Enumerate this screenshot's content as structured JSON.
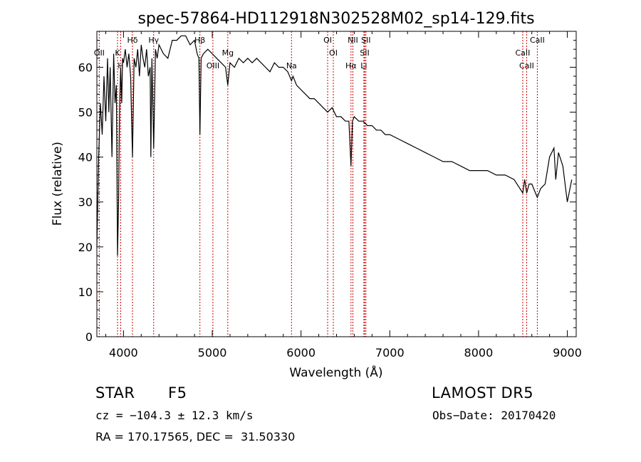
{
  "chart_data": {
    "type": "line",
    "title": "spec-57864-HD112918N302528M02_sp14-129.fits",
    "xlabel": "Wavelength (Å)",
    "ylabel": "Flux (relative)",
    "xlim": [
      3700,
      9100
    ],
    "ylim": [
      0,
      68
    ],
    "xticks": [
      4000,
      5000,
      6000,
      7000,
      8000,
      9000
    ],
    "yticks": [
      0,
      10,
      20,
      30,
      40,
      50,
      60
    ],
    "grid": false,
    "line_color": "#000000",
    "marker_color": "#cc0000",
    "series": [
      {
        "x": [
          3700,
          3720,
          3740,
          3760,
          3780,
          3800,
          3820,
          3835,
          3850,
          3870,
          3889,
          3905,
          3920,
          3933,
          3945,
          3955,
          3968,
          3980,
          3990,
          4000,
          4020,
          4040,
          4060,
          4080,
          4101,
          4120,
          4140,
          4160,
          4180,
          4200,
          4220,
          4240,
          4260,
          4280,
          4300,
          4308,
          4320,
          4340,
          4360,
          4380,
          4400,
          4450,
          4500,
          4550,
          4600,
          4650,
          4700,
          4750,
          4800,
          4830,
          4850,
          4861,
          4875,
          4900,
          4950,
          5000,
          5050,
          5100,
          5150,
          5175,
          5200,
          5250,
          5300,
          5350,
          5400,
          5450,
          5500,
          5550,
          5600,
          5650,
          5700,
          5750,
          5800,
          5850,
          5893,
          5910,
          5950,
          6000,
          6050,
          6100,
          6150,
          6200,
          6250,
          6300,
          6350,
          6400,
          6450,
          6500,
          6540,
          6563,
          6580,
          6600,
          6650,
          6700,
          6750,
          6800,
          6850,
          6900,
          6950,
          7000,
          7100,
          7200,
          7300,
          7400,
          7500,
          7600,
          7700,
          7800,
          7900,
          8000,
          8100,
          8200,
          8300,
          8400,
          8498,
          8520,
          8542,
          8570,
          8600,
          8662,
          8700,
          8750,
          8800,
          8850,
          8870,
          8900,
          8950,
          9000,
          9050
        ],
        "y": [
          20,
          40,
          52,
          45,
          58,
          48,
          62,
          50,
          60,
          40,
          63,
          52,
          56,
          18,
          30,
          50,
          60,
          52,
          62,
          61,
          64,
          60,
          63,
          58,
          40,
          62,
          60,
          64,
          58,
          65,
          62,
          60,
          64,
          58,
          60,
          40,
          62,
          42,
          64,
          62,
          65,
          63,
          62,
          66,
          66,
          67,
          67,
          65,
          66,
          63,
          62,
          45,
          62,
          63,
          64,
          63,
          62,
          61,
          60,
          56,
          61,
          60,
          62,
          61,
          62,
          61,
          62,
          61,
          60,
          59,
          61,
          60,
          60,
          59,
          57,
          58,
          56,
          55,
          54,
          53,
          53,
          52,
          51,
          50,
          51,
          49,
          49,
          48,
          48,
          38,
          48,
          49,
          48,
          48,
          47,
          47,
          46,
          46,
          45,
          45,
          44,
          43,
          42,
          41,
          40,
          39,
          39,
          38,
          37,
          37,
          37,
          36,
          36,
          35,
          32,
          35,
          32,
          34,
          34,
          31,
          33,
          34,
          40,
          42,
          35,
          41,
          38,
          30,
          35
        ]
      }
    ],
    "lines": [
      {
        "label": "Hδ",
        "x": 4101
      },
      {
        "label": "K",
        "x": 3933
      },
      {
        "label": "H",
        "x": 3968
      },
      {
        "label": "Hγ",
        "x": 4340
      },
      {
        "label": "OII",
        "x": 3727
      },
      {
        "label": "OIII",
        "x": 5007
      },
      {
        "label": "Hβ",
        "x": 4861
      },
      {
        "label": "Mg",
        "x": 5175
      },
      {
        "label": "Na",
        "x": 5893
      },
      {
        "label": "OI",
        "x": 6300
      },
      {
        "label": "OI",
        "x": 6364
      },
      {
        "label": "Hα",
        "x": 6563
      },
      {
        "label": "NII",
        "x": 6584
      },
      {
        "label": "SII",
        "x": 6717
      },
      {
        "label": "Li",
        "x": 6708
      },
      {
        "label": "SII",
        "x": 6731
      },
      {
        "label": "CaII",
        "x": 8498
      },
      {
        "label": "CaII",
        "x": 8542
      },
      {
        "label": "CaII",
        "x": 8662
      }
    ]
  },
  "info": {
    "class": "STAR",
    "subclass": "F5",
    "survey": "LAMOST DR5",
    "cz": "cz = −104.3 ± 12.3 km/s",
    "obs_date": "Obs−Date: 20170420",
    "radec": "RA = 170.17565, DEC =  31.50330"
  }
}
